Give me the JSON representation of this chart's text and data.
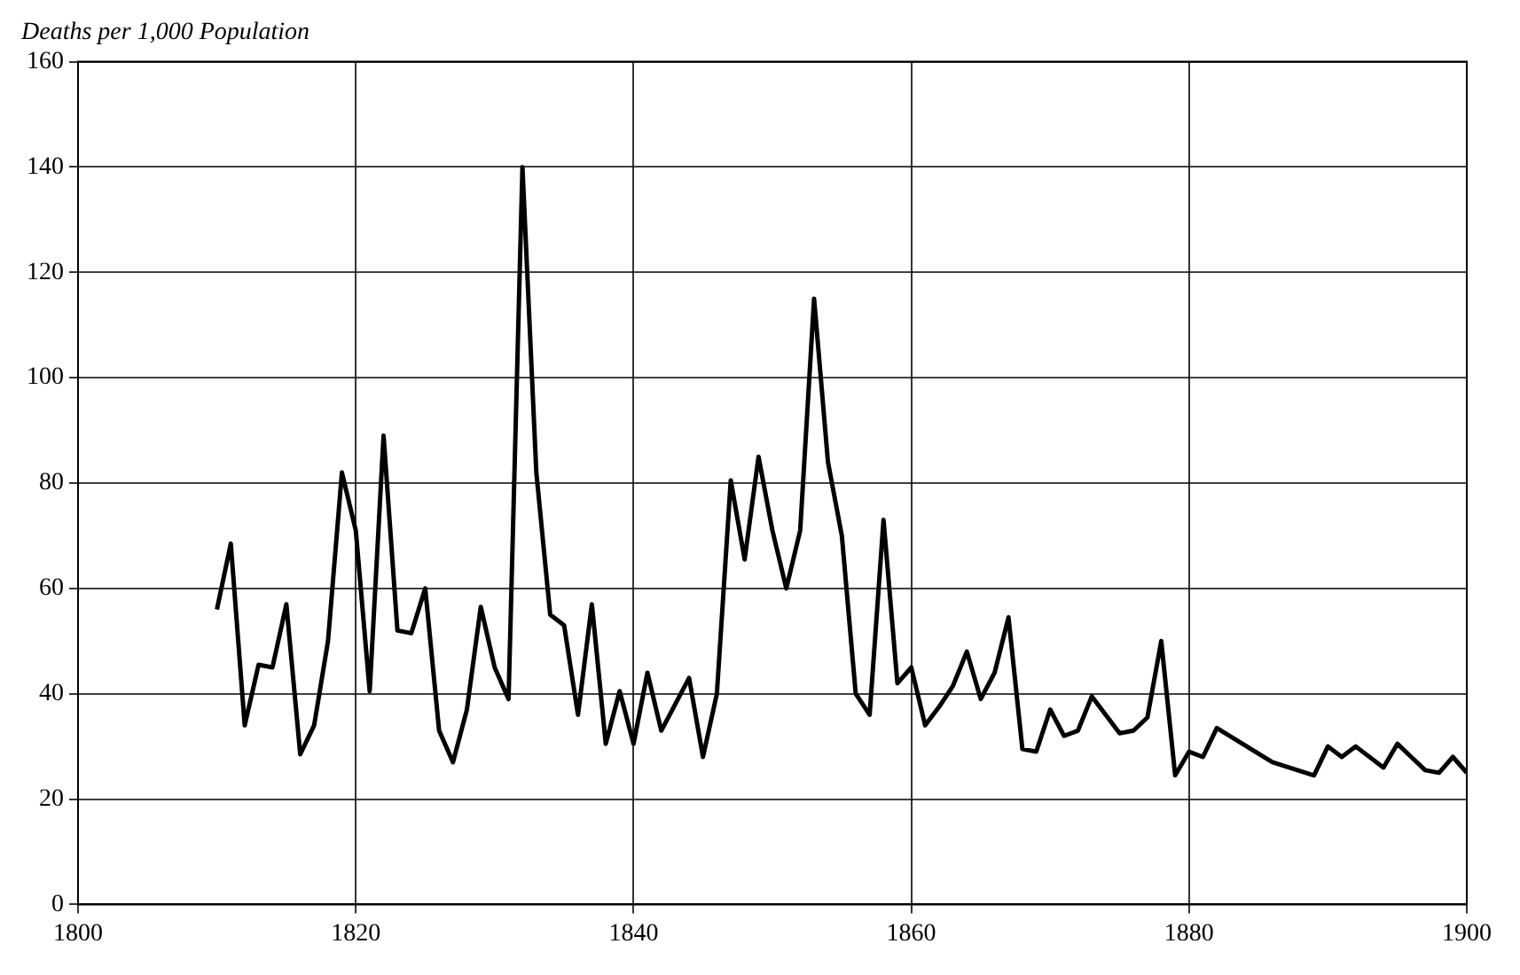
{
  "chart_data": {
    "type": "line",
    "title": "Deaths per 1,000 Population",
    "series": [
      {
        "color": "#000000",
        "x": [
          1810,
          1811,
          1812,
          1813,
          1814,
          1815,
          1816,
          1817,
          1818,
          1819,
          1820,
          1821,
          1822,
          1823,
          1824,
          1825,
          1826,
          1827,
          1828,
          1829,
          1830,
          1831,
          1832,
          1833,
          1834,
          1835,
          1836,
          1837,
          1838,
          1839,
          1840,
          1841,
          1842,
          1843,
          1844,
          1845,
          1846,
          1847,
          1848,
          1849,
          1850,
          1851,
          1852,
          1853,
          1854,
          1855,
          1856,
          1857,
          1858,
          1859,
          1860,
          1861,
          1862,
          1863,
          1864,
          1865,
          1866,
          1867,
          1868,
          1869,
          1870,
          1871,
          1872,
          1873,
          1874,
          1875,
          1876,
          1877,
          1878,
          1879,
          1880,
          1881,
          1882,
          1886,
          1889,
          1890,
          1891,
          1892,
          1894,
          1895,
          1896,
          1897,
          1898,
          1899,
          1900
        ],
        "values": [
          56,
          68.5,
          34,
          45.5,
          45,
          57,
          28.5,
          34,
          50,
          82,
          71,
          40.5,
          89,
          52,
          51.5,
          60,
          33,
          27,
          37,
          56.5,
          45,
          39,
          140,
          82,
          55,
          53,
          36,
          57,
          30.5,
          40.5,
          30.5,
          44,
          33,
          38,
          43,
          28,
          40,
          80.5,
          65.5,
          85,
          71,
          60,
          71,
          115,
          84,
          70,
          40,
          36,
          73,
          42,
          45,
          34,
          37.5,
          41.5,
          48,
          39,
          44,
          54.5,
          29.5,
          29,
          37,
          32,
          33,
          39.5,
          36,
          32.5,
          33,
          35.5,
          50,
          24.5,
          29,
          28,
          33.5,
          27,
          24.5,
          30,
          28,
          30,
          26,
          30.5,
          28,
          25.5,
          25,
          28,
          25
        ]
      }
    ],
    "xlim": [
      1800,
      1900
    ],
    "xticks": [
      1800,
      1820,
      1840,
      1860,
      1880,
      1900
    ],
    "ylim": [
      0,
      160
    ],
    "yticks": [
      0,
      20,
      40,
      60,
      80,
      100,
      120,
      140,
      160
    ],
    "grid": true,
    "marker": "none",
    "line_style": "solid"
  }
}
